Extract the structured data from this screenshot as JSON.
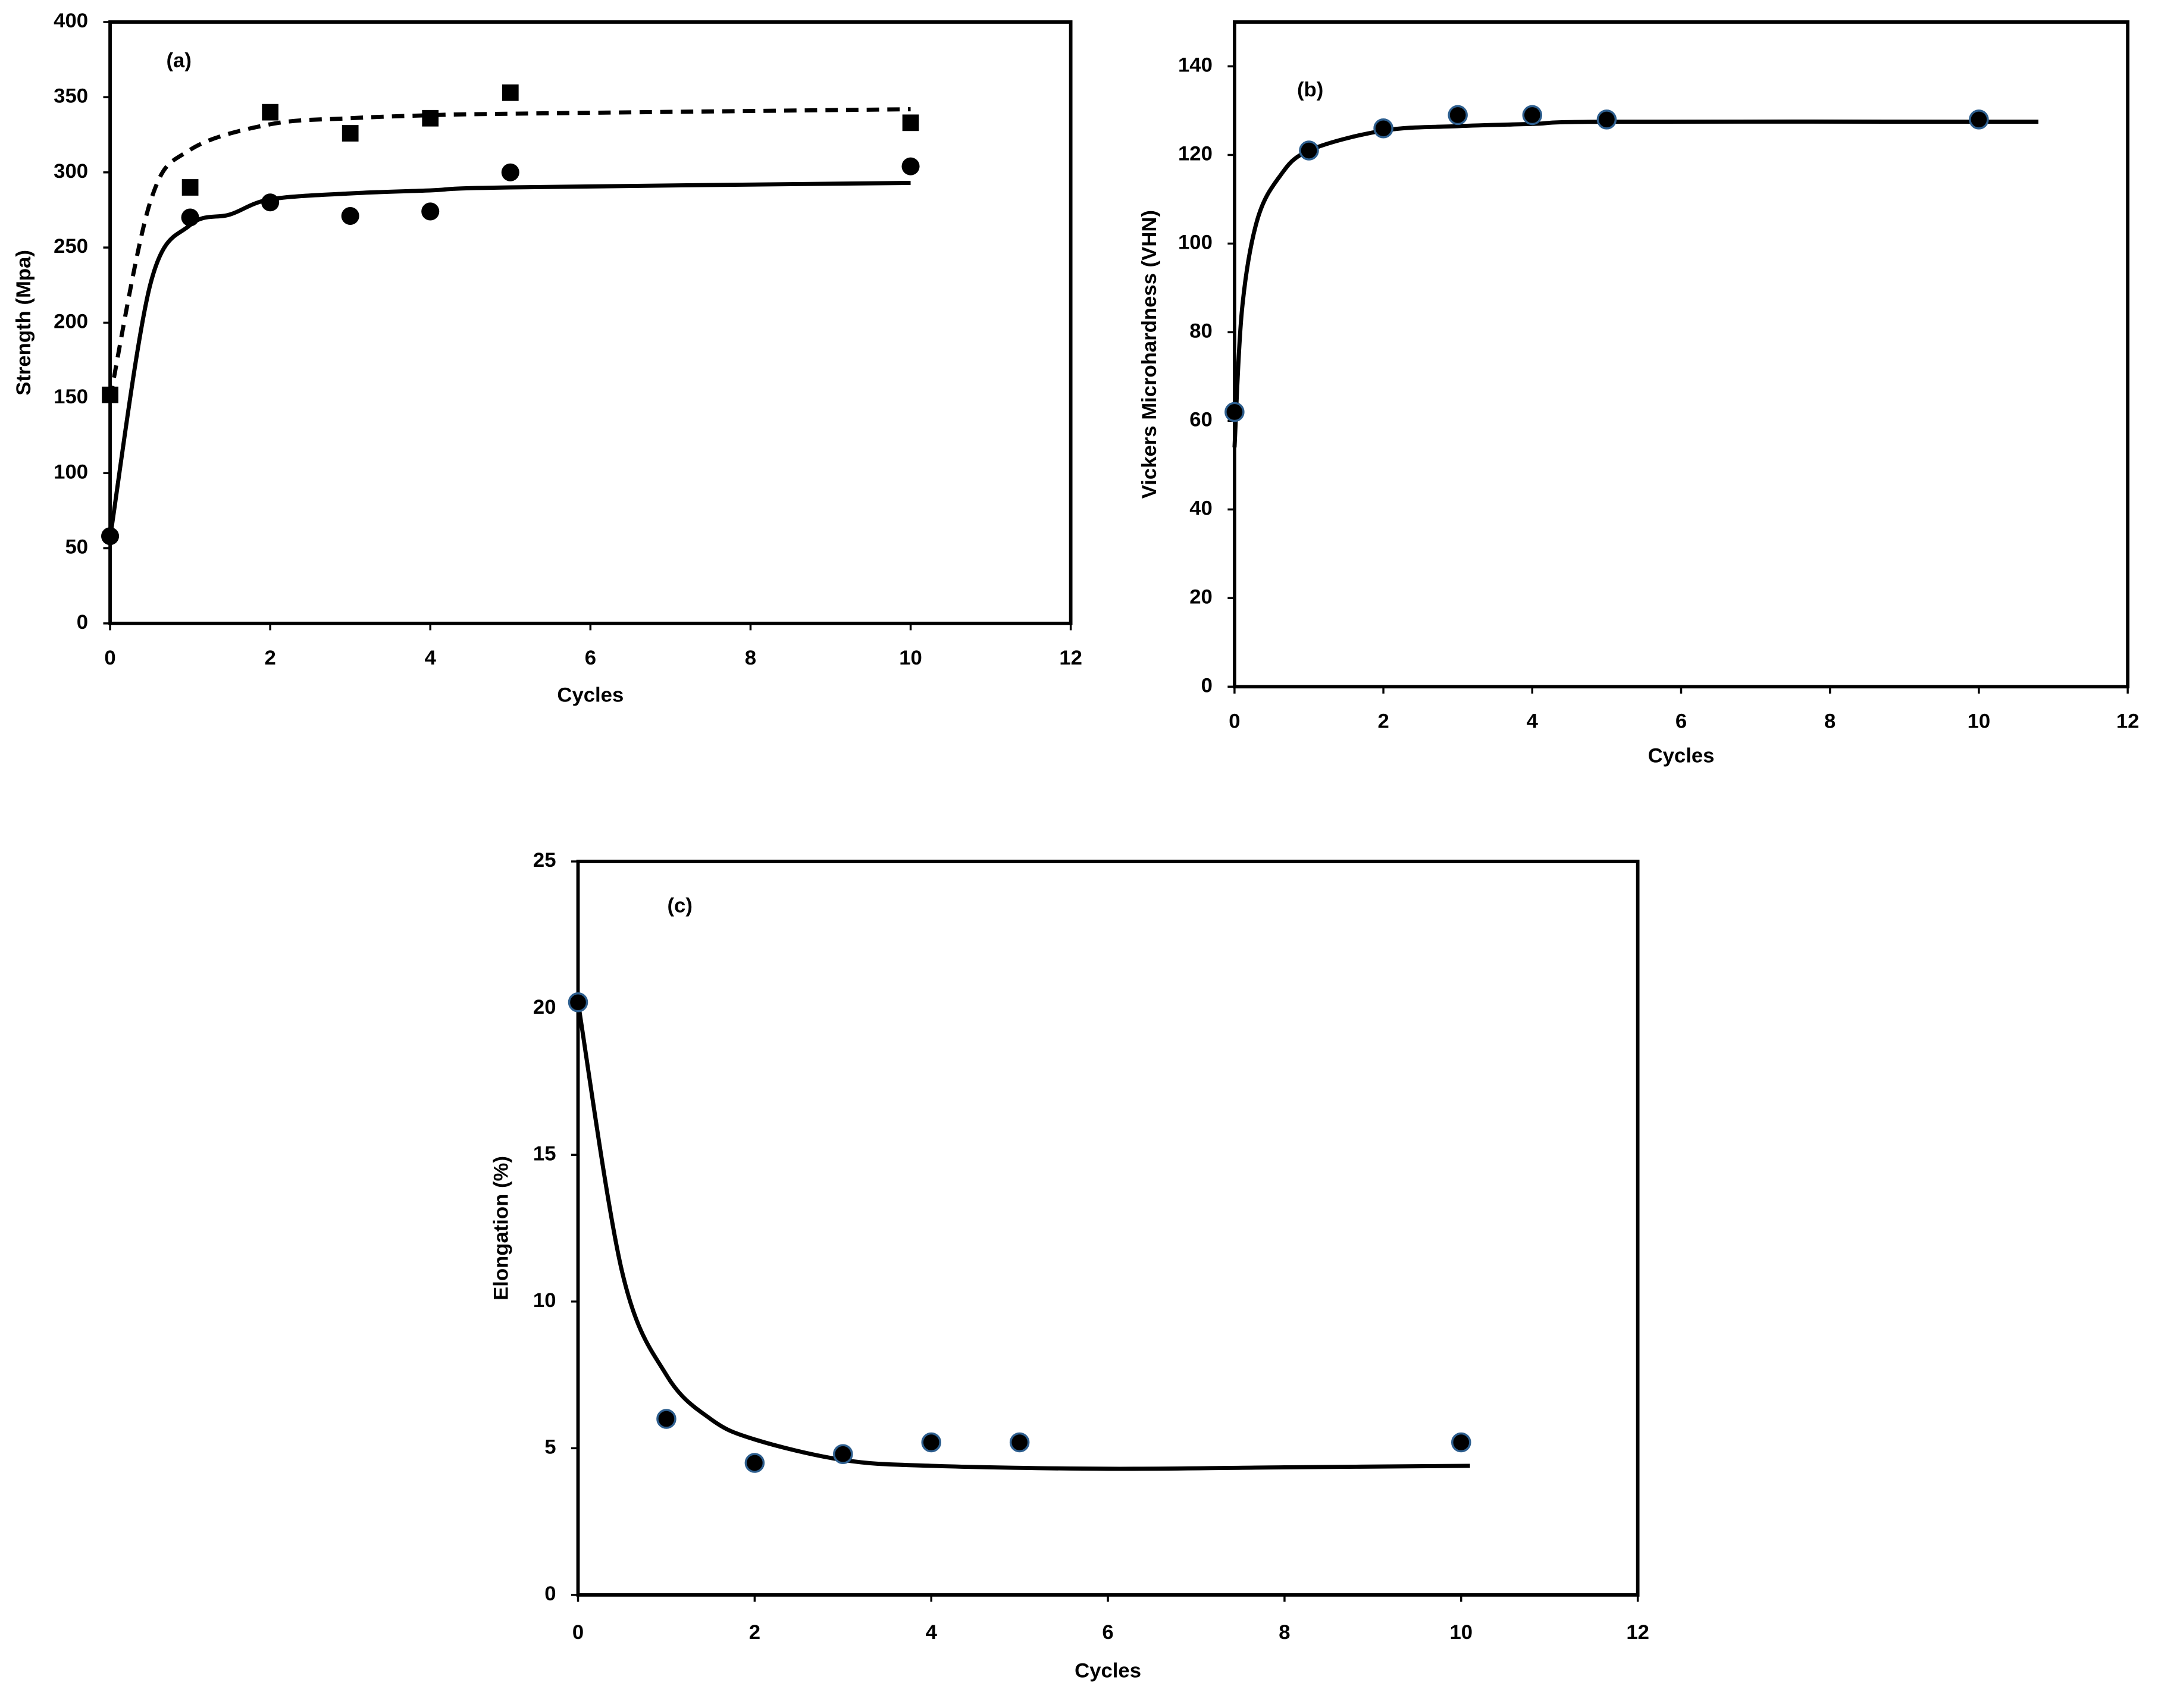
{
  "chart_data": [
    {
      "type": "scatter",
      "title": "(a)",
      "x_label": "Cycles",
      "y_label": "Strength (Mpa)",
      "xlim": [
        0,
        12
      ],
      "xticks": [
        0,
        2,
        4,
        6,
        8,
        10,
        12
      ],
      "ylim": [
        0,
        400
      ],
      "yticks": [
        0,
        50,
        100,
        150,
        200,
        250,
        300,
        350,
        400
      ],
      "series": [
        {
          "mode": "markers",
          "marker": "square",
          "color": "#000000",
          "x": [
            0,
            1,
            2,
            3,
            4,
            5,
            10
          ],
          "values": [
            152,
            290,
            340,
            326,
            336,
            353,
            333
          ]
        },
        {
          "mode": "markers",
          "marker": "circle",
          "color": "#000000",
          "x": [
            0,
            1,
            2,
            3,
            4,
            5,
            10
          ],
          "values": [
            58,
            270,
            280,
            271,
            274,
            300,
            304
          ]
        },
        {
          "mode": "line",
          "dash": true,
          "color": "#000000",
          "x": [
            0,
            0.5,
            1,
            2,
            3,
            4,
            5,
            10
          ],
          "values": [
            150,
            280,
            315,
            332,
            336,
            338,
            339,
            342
          ]
        },
        {
          "mode": "line",
          "dash": false,
          "color": "#000000",
          "x": [
            0,
            0.5,
            1,
            1.5,
            2,
            3,
            4,
            5,
            10
          ],
          "values": [
            57,
            225,
            265,
            272,
            282,
            286,
            288,
            290,
            293
          ]
        }
      ]
    },
    {
      "type": "scatter",
      "title": "(b)",
      "x_label": "Cycles",
      "y_label": "Vickers Microhardness (VHN)",
      "xlim": [
        0,
        12
      ],
      "xticks": [
        0,
        2,
        4,
        6,
        8,
        10,
        12
      ],
      "ylim": [
        0,
        150
      ],
      "yticks": [
        0,
        20,
        40,
        60,
        80,
        100,
        120,
        140
      ],
      "series": [
        {
          "mode": "markers",
          "marker": "circle",
          "color": "#000000",
          "stroke": "#2e5f8f",
          "x": [
            0,
            1,
            2,
            3,
            4,
            5,
            10
          ],
          "values": [
            62,
            121,
            126,
            129,
            129,
            128,
            128
          ]
        },
        {
          "mode": "line",
          "dash": false,
          "color": "#000000",
          "x": [
            0,
            0.1,
            0.3,
            0.6,
            1,
            2,
            3,
            4,
            5,
            10,
            10.8
          ],
          "values": [
            54,
            85,
            105,
            115,
            121,
            125.5,
            126.5,
            127,
            127.5,
            127.5,
            127.5
          ]
        }
      ]
    },
    {
      "type": "scatter",
      "title": "(c)",
      "x_label": "Cycles",
      "y_label": "Elongation (%)",
      "xlim": [
        0,
        12
      ],
      "xticks": [
        0,
        2,
        4,
        6,
        8,
        10,
        12
      ],
      "ylim": [
        0,
        25
      ],
      "yticks": [
        0,
        5,
        10,
        15,
        20,
        25
      ],
      "series": [
        {
          "mode": "markers",
          "marker": "circle",
          "color": "#000000",
          "stroke": "#2e5f8f",
          "x": [
            0,
            1,
            2,
            3,
            4,
            5,
            10
          ],
          "values": [
            20.2,
            6,
            4.5,
            4.8,
            5.2,
            5.2,
            5.2
          ]
        },
        {
          "mode": "line",
          "dash": false,
          "color": "#000000",
          "x": [
            0,
            0.5,
            1,
            1.5,
            2,
            3,
            4,
            6,
            8,
            10.1
          ],
          "values": [
            20.2,
            11,
            7.5,
            6,
            5.3,
            4.6,
            4.4,
            4.3,
            4.35,
            4.4
          ]
        }
      ]
    }
  ]
}
